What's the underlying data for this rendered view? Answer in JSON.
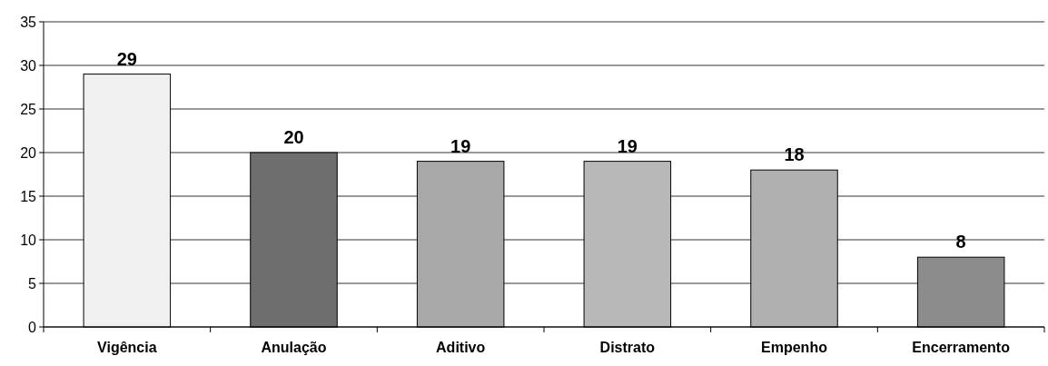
{
  "chart_data": {
    "type": "bar",
    "categories": [
      "Vigência",
      "Anulação",
      "Aditivo",
      "Distrato",
      "Empenho",
      "Encerramento"
    ],
    "values": [
      29,
      20,
      19,
      19,
      18,
      8
    ],
    "colors": [
      "#f0f0f0",
      "#6e6e6e",
      "#a8a8a8",
      "#b8b8b8",
      "#b0b0b0",
      "#8c8c8c"
    ],
    "ylim": [
      0,
      35
    ],
    "yticks": [
      0,
      5,
      10,
      15,
      20,
      25,
      30,
      35
    ],
    "grid": "y",
    "data_labels": true
  }
}
